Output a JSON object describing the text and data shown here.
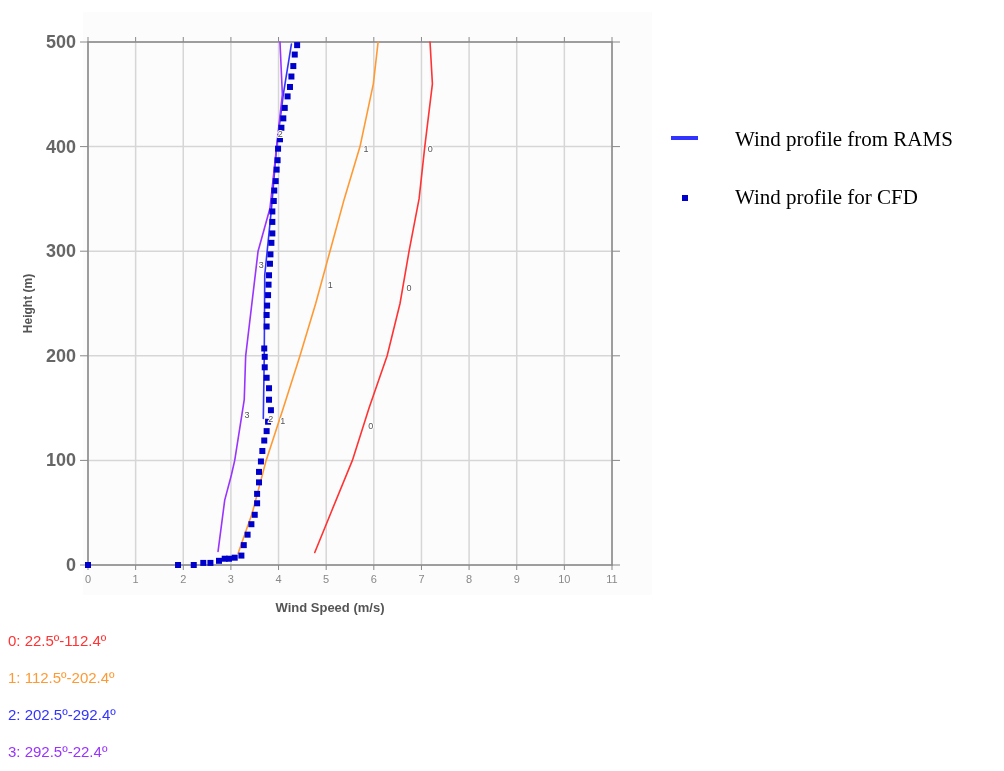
{
  "chart_data": {
    "type": "line",
    "xlabel": "Wind Speed (m/s)",
    "ylabel": "Height (m)",
    "xlim": [
      0,
      11
    ],
    "xticks": [
      0,
      1,
      2,
      3,
      4,
      5,
      6,
      7,
      8,
      9,
      10,
      11
    ],
    "ylim": [
      0,
      500
    ],
    "yticks": [
      0,
      100,
      200,
      300,
      400,
      500
    ],
    "grid": true,
    "legend": "right",
    "series": [
      {
        "color": "#ff3333",
        "x": [
          4.76,
          5.1,
          5.55,
          5.9,
          6.28,
          6.55,
          6.74,
          6.95,
          7.07,
          7.23,
          7.18
        ],
        "values": [
          12,
          50,
          100,
          150,
          200,
          250,
          300,
          350,
          400,
          460,
          500
        ]
      },
      {
        "color": "#ff9933",
        "x": [
          3.15,
          3.45,
          3.74,
          4.1,
          4.45,
          4.78,
          5.08,
          5.38,
          5.71,
          5.99,
          6.09
        ],
        "values": [
          11,
          50,
          100,
          150,
          200,
          250,
          300,
          350,
          400,
          460,
          500
        ]
      },
      {
        "name": "Wind profile from RAMS",
        "color": "#3333ff",
        "x": [
          3.68,
          3.7,
          3.71,
          3.85,
          3.96,
          4.1,
          4.27
        ],
        "values": [
          140,
          200,
          277,
          340,
          400,
          450,
          498
        ]
      },
      {
        "color": "#9933ff",
        "x": [
          2.73,
          2.87,
          3.01,
          3.08,
          3.28,
          3.31,
          3.43,
          3.57,
          3.82,
          3.96,
          4.08,
          4.03
        ],
        "values": [
          13,
          62,
          86,
          100,
          158,
          200,
          246,
          300,
          341,
          400,
          450,
          500
        ]
      },
      {
        "name": "Wind profile for CFD",
        "color": "#0000cc",
        "type": "scatter",
        "marker": "square",
        "x": [
          0,
          1.89,
          2.22,
          2.42,
          2.57,
          2.75,
          2.87,
          2.96,
          3.08,
          3.22,
          3.27,
          3.35,
          3.43,
          3.5,
          3.55,
          3.55,
          3.59,
          3.59,
          3.63,
          3.66,
          3.7,
          3.75,
          3.78,
          3.84,
          3.8,
          3.8,
          3.75,
          3.71,
          3.71,
          3.7,
          3.75,
          3.75,
          3.76,
          3.78,
          3.79,
          3.8,
          3.82,
          3.83,
          3.85,
          3.87,
          3.87,
          3.87,
          3.9,
          3.91,
          3.94,
          3.96,
          3.98,
          3.99,
          4.03,
          4.06,
          4.1,
          4.13,
          4.19,
          4.24,
          4.27,
          4.31,
          4.34,
          4.39
        ],
        "values": [
          0,
          0,
          0,
          2,
          2,
          4,
          6,
          6,
          7,
          9,
          19,
          29,
          39,
          48,
          59,
          68,
          79,
          89,
          99,
          109,
          119,
          128,
          137,
          148,
          158,
          169,
          179,
          189,
          199,
          207,
          228,
          239,
          248,
          258,
          268,
          277,
          288,
          297,
          308,
          317,
          328,
          338,
          348,
          358,
          367,
          378,
          387,
          398,
          407,
          418,
          427,
          437,
          448,
          457,
          467,
          477,
          488,
          497
        ]
      }
    ],
    "annotations": [
      "0: 22.5º-112.4º",
      "1: 112.5º-202.4º",
      "2: 202.5º-292.4º",
      "3: 292.5º-22.4º",
      {
        "text": "0",
        "x": 5.8,
        "y": 133
      },
      {
        "text": "0",
        "x": 6.6,
        "y": 265
      },
      {
        "text": "0",
        "x": 7.05,
        "y": 398
      },
      {
        "text": "1",
        "x": 3.95,
        "y": 138
      },
      {
        "text": "1",
        "x": 4.95,
        "y": 268
      },
      {
        "text": "1",
        "x": 5.7,
        "y": 398
      },
      {
        "text": "2",
        "x": 3.7,
        "y": 140
      },
      {
        "text": "2",
        "x": 3.9,
        "y": 412
      },
      {
        "text": "3",
        "x": 3.2,
        "y": 143
      },
      {
        "text": "3",
        "x": 3.5,
        "y": 287
      }
    ]
  }
}
